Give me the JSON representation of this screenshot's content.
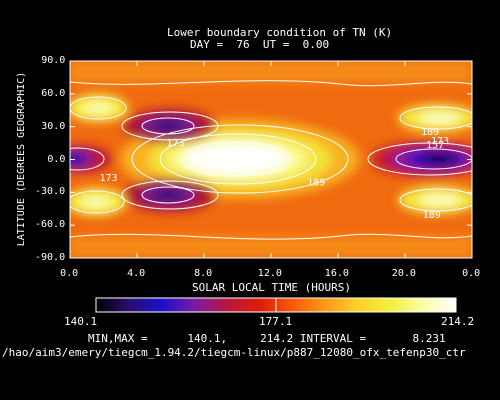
{
  "header": {
    "title": "Lower boundary condition of TN (K)",
    "subtitle": "DAY =  76  UT =  0.00"
  },
  "chart_data": {
    "type": "heatmap",
    "title": "Lower boundary condition of TN (K)",
    "xlabel": "SOLAR LOCAL TIME (HOURS)",
    "ylabel": "LATITUDE (DEGREES GEOGRAPHIC)",
    "xlim": [
      0,
      24
    ],
    "ylim": [
      -90,
      90
    ],
    "x_ticks": [
      "0.0",
      "4.0",
      "8.0",
      "12.0",
      "16.0",
      "20.0",
      "0.0"
    ],
    "y_ticks": [
      "90.0",
      "60.0",
      "30.0",
      "0.0",
      "-30.0",
      "-60.0",
      "-90.0"
    ],
    "contour_labels": [
      {
        "label": "173",
        "x": 6.3,
        "y": 16
      },
      {
        "label": "173",
        "x": 2.3,
        "y": -16
      },
      {
        "label": "189",
        "x": 14.7,
        "y": -20
      },
      {
        "label": "189",
        "x": 21.5,
        "y": 26
      },
      {
        "label": "157",
        "x": 21.8,
        "y": 14
      },
      {
        "label": "173",
        "x": 22.1,
        "y": 18
      },
      {
        "label": "189",
        "x": 21.6,
        "y": -50
      }
    ],
    "features": [
      {
        "kind": "max",
        "x": 10.0,
        "y": 0,
        "value": 214.2
      },
      {
        "kind": "min",
        "x": 22.0,
        "y": 0,
        "value": 140.1
      }
    ],
    "colorbar": {
      "min": "140.1",
      "mid": "177.1",
      "max": "214.2",
      "colors": [
        "#000000",
        "#2a0e6e",
        "#1a10c8",
        "#7a1aa8",
        "#b8183c",
        "#e01a0a",
        "#f55a0a",
        "#fa9a18",
        "#fcd02a",
        "#f4f040",
        "#fbfba8",
        "#ffffff"
      ]
    },
    "summary": "MIN,MAX =      140.1,     214.2 INTERVAL =       8.231",
    "min": 140.1,
    "max": 214.2,
    "interval": 8.231
  },
  "footer": {
    "path": "/hao/aim3/emery/tiegcm_1.94.2/tiegcm-linux/p887_12080_ofx_tefenp30_ctr"
  }
}
